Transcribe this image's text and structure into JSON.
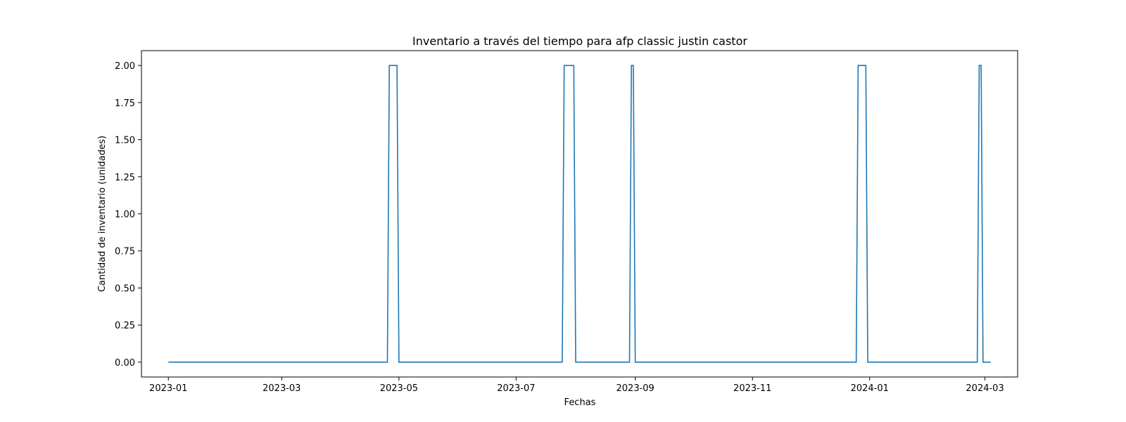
{
  "chart_data": {
    "type": "line",
    "title": "Inventario a través del tiempo para afp classic justin castor",
    "xlabel": "Fechas",
    "ylabel": "Cantidad de inventario (unidades)",
    "x_is_date": true,
    "xlim": [
      "2022-12-18",
      "2024-03-18"
    ],
    "ylim": [
      -0.1,
      2.1
    ],
    "x_ticks": [
      "2023-01",
      "2023-03",
      "2023-05",
      "2023-07",
      "2023-09",
      "2023-11",
      "2024-01",
      "2024-03"
    ],
    "y_ticks": [
      "0.00",
      "0.25",
      "0.50",
      "0.75",
      "1.00",
      "1.25",
      "1.50",
      "1.75",
      "2.00"
    ],
    "grid": false,
    "color": "#1f77b4",
    "series": [
      {
        "points": [
          [
            "2023-01-01",
            0
          ],
          [
            "2023-04-25",
            0
          ],
          [
            "2023-04-26",
            2
          ],
          [
            "2023-04-30",
            2
          ],
          [
            "2023-05-01",
            0
          ],
          [
            "2023-07-25",
            0
          ],
          [
            "2023-07-26",
            2
          ],
          [
            "2023-07-31",
            2
          ],
          [
            "2023-08-01",
            0
          ],
          [
            "2023-08-29",
            0
          ],
          [
            "2023-08-30",
            2
          ],
          [
            "2023-08-31",
            2
          ],
          [
            "2023-09-01",
            0
          ],
          [
            "2023-12-25",
            0
          ],
          [
            "2023-12-26",
            2
          ],
          [
            "2023-12-30",
            2
          ],
          [
            "2023-12-31",
            0
          ],
          [
            "2024-02-26",
            0
          ],
          [
            "2024-02-27",
            2
          ],
          [
            "2024-02-28",
            2
          ],
          [
            "2024-02-29",
            0
          ],
          [
            "2024-03-04",
            0
          ]
        ]
      }
    ]
  }
}
